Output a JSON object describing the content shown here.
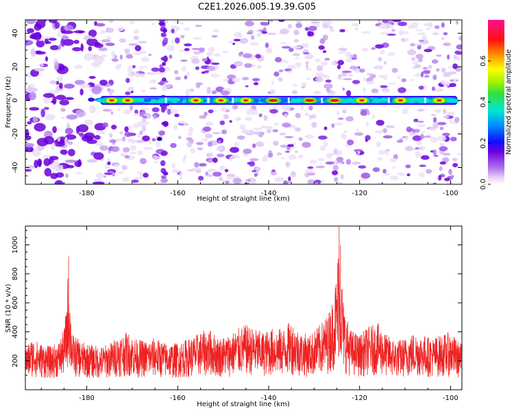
{
  "title": "C2E1.2026.005.19.39.G05",
  "chart_data": [
    {
      "type": "heatmap",
      "title": "C2E1.2026.005.19.39.G05",
      "xlabel": "Height of straight line (km)",
      "ylabel": "Frequency (Hz)",
      "xlim": [
        -193.5,
        -97.5
      ],
      "ylim": [
        -50,
        48
      ],
      "xticks": [
        -180,
        -160,
        -140,
        -120,
        -100
      ],
      "yticks": [
        -40,
        -20,
        0,
        20,
        40
      ],
      "colorbar": {
        "label": "Normalized spectral amplitude",
        "range": [
          0.0,
          0.8
        ],
        "ticks": [
          0.0,
          0.2,
          0.4,
          0.6
        ]
      },
      "features": [
        {
          "name": "signal-band",
          "frequency_hz": 0,
          "x_start_km": -177,
          "x_end_km": -98.5,
          "peak_amplitude": 0.75
        },
        {
          "name": "noise",
          "description": "scattered low-amplitude patches, denser below -177 km"
        }
      ],
      "hotspots_km": [
        -174.5,
        -171,
        -156,
        -150.5,
        -145,
        -139,
        -131,
        -125.5,
        -119.5,
        -111,
        -102.5
      ]
    },
    {
      "type": "line",
      "title": "",
      "xlabel": "Height of straight line (km)",
      "ylabel": "SNR (10 * v/v)",
      "xlim": [
        -193.5,
        -97.5
      ],
      "ylim": [
        0,
        1130
      ],
      "xticks": [
        -180,
        -160,
        -140,
        -120,
        -100
      ],
      "yticks": [
        200,
        400,
        600,
        800,
        1000
      ],
      "series": [
        {
          "name": "SNR",
          "color": "#ee2222",
          "x": [
            -193.5,
            -192,
            -190,
            -188,
            -186,
            -185,
            -184.5,
            -184,
            -183.5,
            -183,
            -181,
            -179,
            -177,
            -175,
            -173,
            -171,
            -169,
            -167,
            -165,
            -163,
            -161,
            -159,
            -157,
            -155,
            -153,
            -151,
            -149,
            -147,
            -145,
            -143,
            -141,
            -139,
            -137,
            -135,
            -133,
            -131,
            -129,
            -127,
            -126,
            -125,
            -124.5,
            -124,
            -123.5,
            -123,
            -122,
            -120,
            -118,
            -116,
            -114,
            -112,
            -110,
            -108,
            -106,
            -104,
            -102,
            -100,
            -98.5,
            -97.5
          ],
          "values": [
            290,
            360,
            320,
            300,
            340,
            420,
            560,
            900,
            520,
            380,
            330,
            310,
            300,
            320,
            380,
            400,
            350,
            340,
            360,
            330,
            320,
            340,
            360,
            400,
            420,
            360,
            380,
            420,
            450,
            420,
            400,
            430,
            420,
            480,
            400,
            380,
            440,
            520,
            620,
            820,
            1120,
            820,
            600,
            520,
            420,
            380,
            440,
            460,
            380,
            340,
            360,
            400,
            380,
            360,
            380,
            400,
            340,
            320
          ],
          "noise_floor": 120
        }
      ]
    }
  ]
}
